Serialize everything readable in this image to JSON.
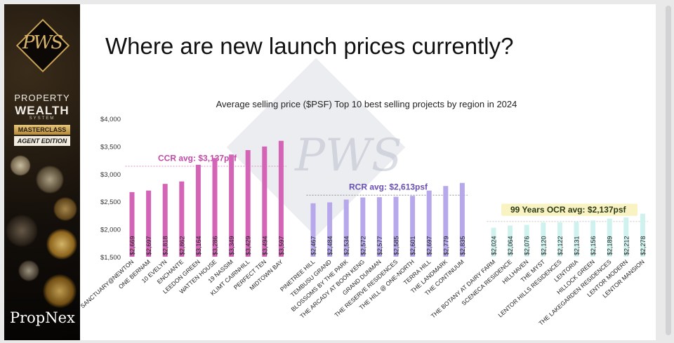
{
  "sidebar": {
    "logo": "PWS",
    "brand_line1": "PROPERTY",
    "brand_line2": "WEALTH",
    "brand_line3": "SYSTEM",
    "badge1": "MASTERCLASS",
    "badge2": "AGENT EDITION",
    "footer_logo": "PropNex"
  },
  "slide": {
    "headline": "Where are new launch prices currently?"
  },
  "colors": {
    "ccr": "#d464b6",
    "rcr": "#b7a8ec",
    "ocr": "#cff2ee",
    "ccr_label": "#c04aa6",
    "rcr_label": "#6a4fb2",
    "ocr_label": "#2a3a16",
    "ocr_box": "#f9f3c4"
  },
  "chart_data": {
    "type": "bar",
    "title": "Average selling price ($PSF) Top 10 best selling projects by region in 2024",
    "ylim": [
      1500,
      4000
    ],
    "yticks": [
      "$1,500",
      "$2,000",
      "$2,500",
      "$3,000",
      "$3,500",
      "$4,000"
    ],
    "grid": false,
    "groups": [
      {
        "region": "CCR",
        "annotation": "CCR avg: $3,137psf",
        "avg": 3137,
        "categories": [
          "SANCTUARY@NEWTON",
          "ONE BERNAM",
          "10 EVELYN",
          "ENCHANTE",
          "LEEDON GREEN",
          "WATTEN HOUSE",
          "19 NASSIM",
          "KLIMT CAIRNHILL",
          "PERFECT TEN",
          "MIDTOWN BAY"
        ],
        "values": [
          2669,
          2697,
          2818,
          2862,
          3164,
          3286,
          3349,
          3429,
          3494,
          3597
        ],
        "labels": [
          "$2,669",
          "$2,697",
          "$2,818",
          "$2,862",
          "$3,164",
          "$3,286",
          "$3,349",
          "$3,429",
          "$3,494",
          "$3,597"
        ]
      },
      {
        "region": "RCR",
        "annotation": "RCR avg: $2,613psf",
        "avg": 2613,
        "categories": [
          "PINETREE HILL",
          "TEMBUSU GRAND",
          "BLOSSOMS BY THE PARK",
          "THE ARCADY AT BOON KENG",
          "GRAND DUNMAN",
          "THE RESERVE RESIDENCES",
          "THE HILL @ ONE-NORTH",
          "TERRA HILL",
          "THE LANDMARK",
          "THE CONTINUUM"
        ],
        "values": [
          2467,
          2484,
          2534,
          2572,
          2577,
          2585,
          2601,
          2697,
          2779,
          2835
        ],
        "labels": [
          "$2,467",
          "$2,484",
          "$2,534",
          "$2,572",
          "$2,577",
          "$2,585",
          "$2,601",
          "$2,697",
          "$2,779",
          "$2,835"
        ]
      },
      {
        "region": "OCR",
        "annotation": "99 Years OCR avg: $2,137psf",
        "avg": 2137,
        "categories": [
          "THE BOTANY AT DAIRY FARM",
          "SCENECA RESIDENCE",
          "HILLHAVEN",
          "THE MYST",
          "LENTOR HILLS RESIDENCES",
          "LENTORIA",
          "HILLOCK GREEN",
          "THE LAKEGARDEN RESIDENCES",
          "LENTOR MODERN",
          "LENTOR MANSION"
        ],
        "values": [
          2024,
          2064,
          2076,
          2120,
          2122,
          2131,
          2156,
          2189,
          2212,
          2278
        ],
        "labels": [
          "$2,024",
          "$2,064",
          "$2,076",
          "$2,120",
          "$2,122",
          "$2,131",
          "$2,156",
          "$2,189",
          "$2,212",
          "$2,278"
        ]
      }
    ]
  }
}
